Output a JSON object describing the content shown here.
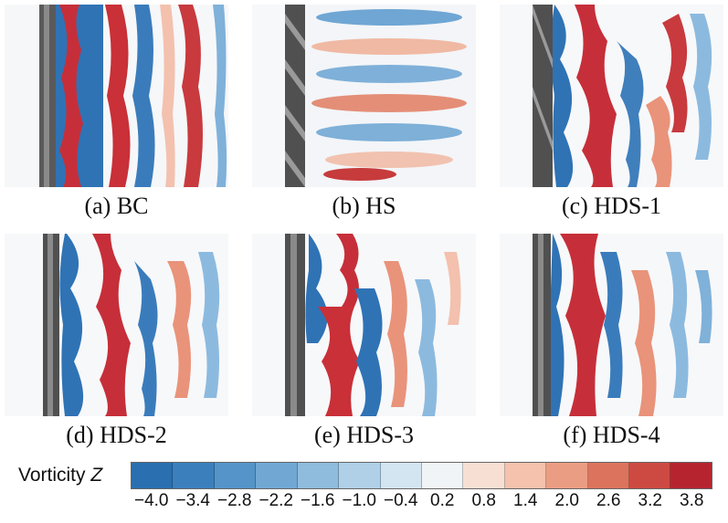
{
  "panels": [
    {
      "id": "a",
      "caption": "(a) BC"
    },
    {
      "id": "b",
      "caption": "(b) HS"
    },
    {
      "id": "c",
      "caption": "(c) HDS-1"
    },
    {
      "id": "d",
      "caption": "(d) HDS-2"
    },
    {
      "id": "e",
      "caption": "(e) HDS-3"
    },
    {
      "id": "f",
      "caption": "(f) HDS-4"
    }
  ],
  "colorbar": {
    "label": "Vorticity",
    "variable": "Z",
    "ticks": [
      "−4.0",
      "−3.4",
      "−2.8",
      "−2.2",
      "−1.6",
      "−1.0",
      "−0.4",
      "0.2",
      "0.8",
      "1.4",
      "2.0",
      "2.6",
      "3.2",
      "3.8"
    ],
    "colors": [
      "#2a6fb0",
      "#3b80bd",
      "#5594c8",
      "#70a8d3",
      "#8fbcdc",
      "#b0d0e7",
      "#d3e5f1",
      "#f1f4f7",
      "#f8dfd3",
      "#f4c2ad",
      "#eb9d83",
      "#dc735d",
      "#cc4a42",
      "#b62430"
    ]
  }
}
